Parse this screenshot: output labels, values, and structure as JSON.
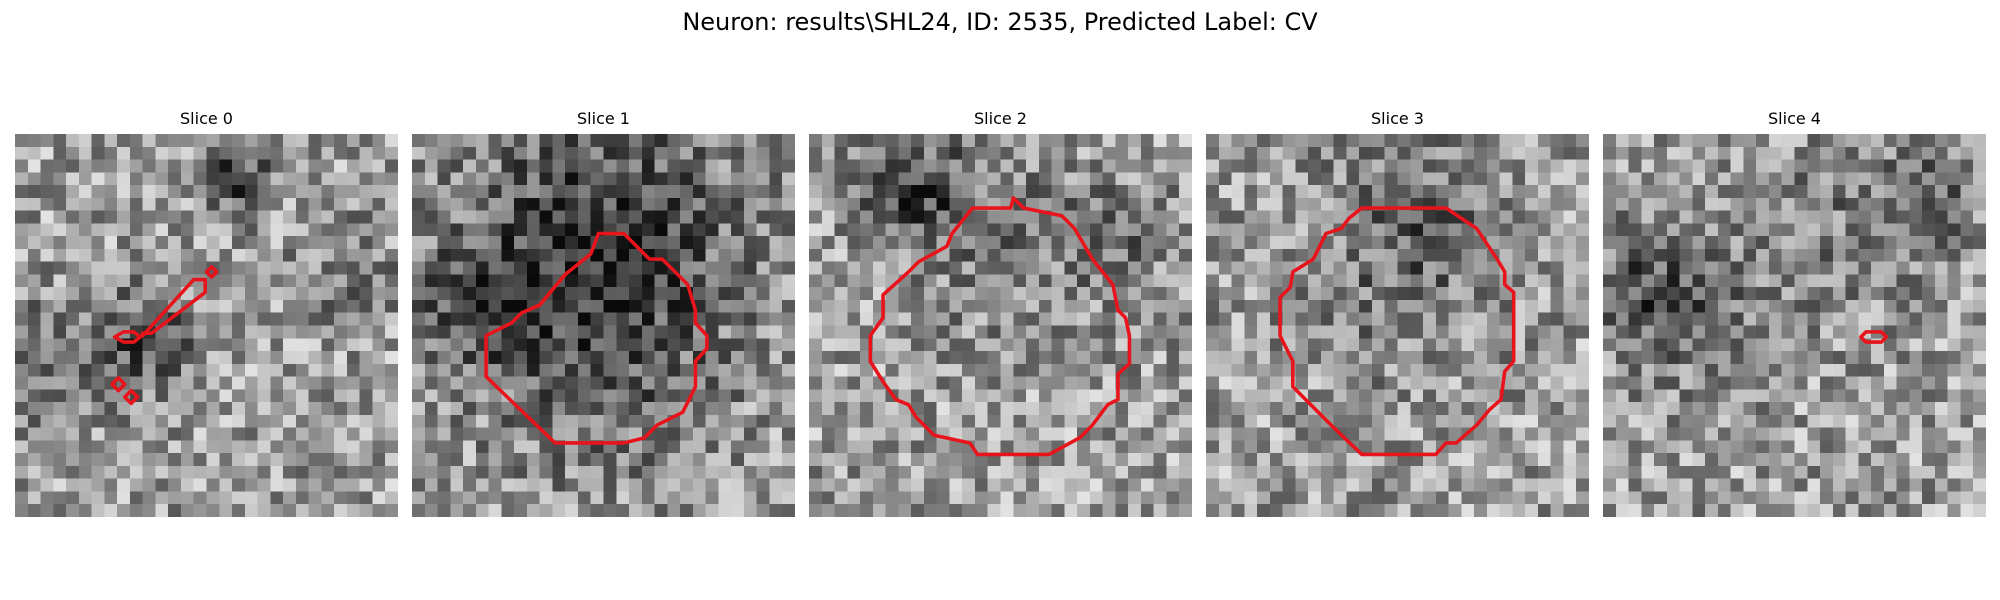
{
  "figure": {
    "title": "Neuron: results\\SHL24, ID: 2535, Predicted Label: CV"
  },
  "colors": {
    "contour": "#e8141c",
    "background": "#ffffff"
  },
  "panels": [
    {
      "title": "Slice 0",
      "seed": 11,
      "dark_blobs": [
        [
          0.58,
          0.12,
          0.06,
          0.9
        ],
        [
          0.1,
          0.6,
          0.12,
          0.5
        ],
        [
          0.35,
          0.55,
          0.1,
          0.6
        ],
        [
          0.85,
          0.35,
          0.1,
          0.3
        ]
      ]
    },
    {
      "title": "Slice 1",
      "seed": 23,
      "dark_blobs": [
        [
          0.5,
          0.25,
          0.25,
          0.8
        ],
        [
          0.15,
          0.45,
          0.12,
          0.5
        ],
        [
          0.5,
          0.6,
          0.22,
          0.4
        ]
      ]
    },
    {
      "title": "Slice 2",
      "seed": 37,
      "dark_blobs": [
        [
          0.28,
          0.15,
          0.1,
          0.8
        ],
        [
          0.55,
          0.3,
          0.18,
          0.3
        ],
        [
          0.85,
          0.25,
          0.1,
          0.3
        ]
      ]
    },
    {
      "title": "Slice 3",
      "seed": 49,
      "dark_blobs": [
        [
          0.5,
          0.35,
          0.2,
          0.35
        ],
        [
          0.6,
          0.2,
          0.12,
          0.3
        ]
      ]
    },
    {
      "title": "Slice 4",
      "seed": 61,
      "dark_blobs": [
        [
          0.15,
          0.42,
          0.14,
          0.7
        ],
        [
          0.6,
          0.25,
          0.18,
          0.25
        ],
        [
          0.85,
          0.15,
          0.12,
          0.35
        ]
      ]
    }
  ]
}
